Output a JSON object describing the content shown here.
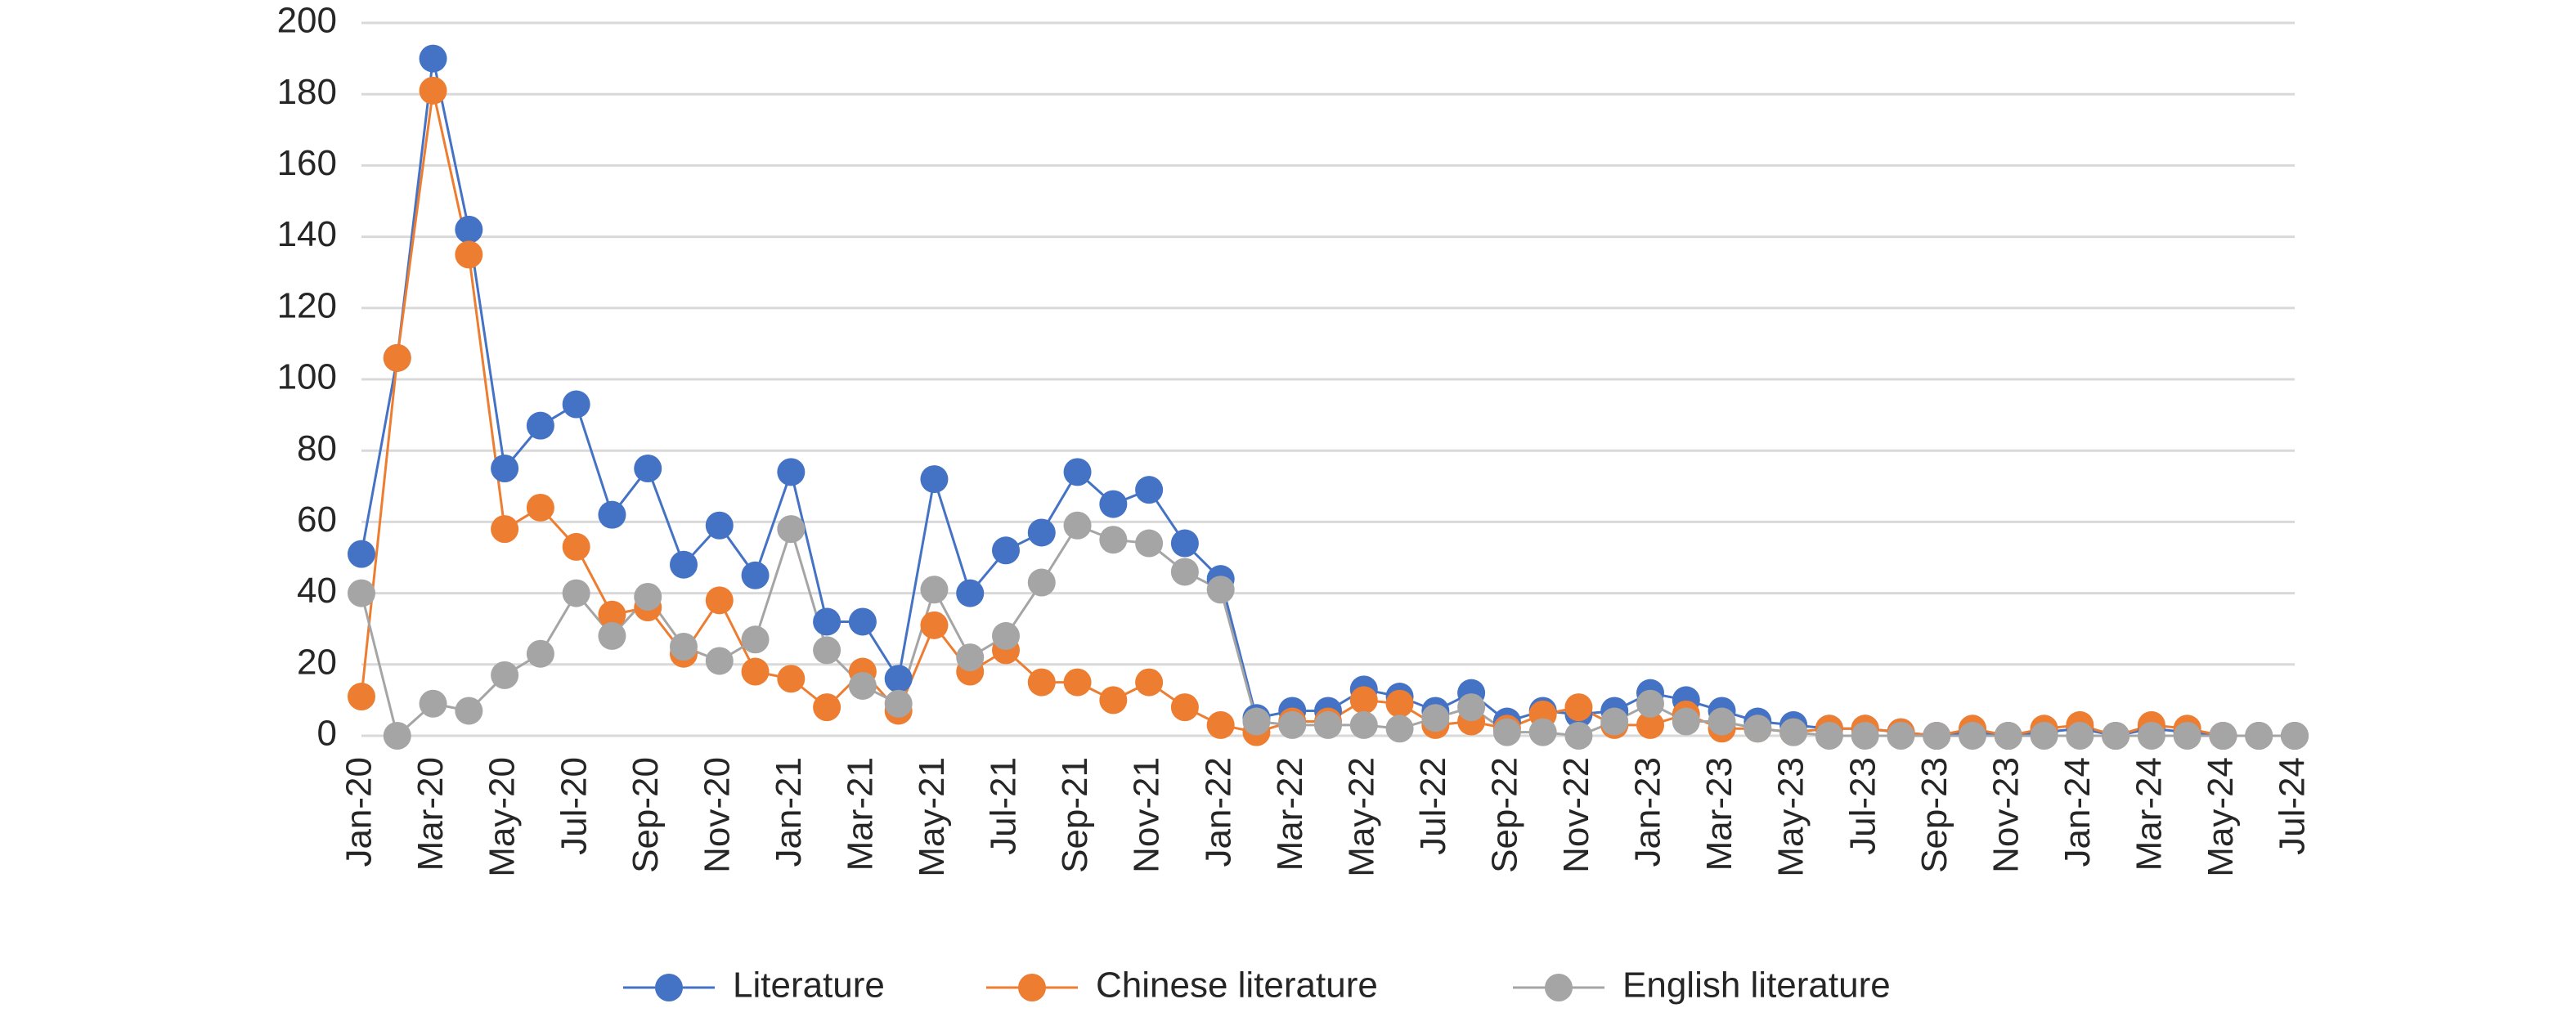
{
  "chart_data": {
    "type": "line",
    "categories": [
      "Jan-20",
      null,
      "Mar-20",
      null,
      "May-20",
      null,
      "Jul-20",
      null,
      "Sep-20",
      null,
      "Nov-20",
      null,
      "Jan-21",
      null,
      "Mar-21",
      null,
      "May-21",
      null,
      "Jul-21",
      null,
      "Sep-21",
      null,
      "Nov-21",
      null,
      "Jan-22",
      null,
      "Mar-22",
      null,
      "May-22",
      null,
      "Jul-22",
      null,
      "Sep-22",
      null,
      "Nov-22",
      null,
      "Jan-23",
      null,
      "Mar-23",
      null,
      "May-23",
      null,
      "Jul-23",
      null,
      "Sep-23",
      null,
      "Nov-23",
      null,
      "Jan-24",
      null,
      "Mar-24",
      null,
      "May-24",
      null,
      "Jul-24"
    ],
    "series": [
      {
        "name": "Literature",
        "color": "#4472c4",
        "values": [
          51,
          106,
          190,
          142,
          75,
          87,
          93,
          62,
          75,
          48,
          59,
          45,
          74,
          32,
          32,
          16,
          72,
          40,
          52,
          57,
          74,
          65,
          69,
          54,
          44,
          5,
          7,
          7,
          13,
          11,
          7,
          12,
          4,
          7,
          6,
          7,
          12,
          10,
          7,
          4,
          3,
          2,
          2,
          1,
          0,
          1,
          0,
          1,
          2,
          0,
          2,
          1,
          0,
          0,
          0
        ]
      },
      {
        "name": "Chinese literature",
        "color": "#ed7d31",
        "values": [
          11,
          106,
          181,
          135,
          58,
          64,
          53,
          34,
          36,
          23,
          38,
          18,
          16,
          8,
          18,
          7,
          31,
          18,
          24,
          15,
          15,
          10,
          15,
          8,
          3,
          1,
          4,
          4,
          10,
          9,
          3,
          4,
          2,
          6,
          8,
          3,
          3,
          6,
          2,
          2,
          1,
          2,
          2,
          1,
          0,
          2,
          0,
          2,
          3,
          0,
          3,
          2,
          0,
          0,
          0
        ]
      },
      {
        "name": "English literature",
        "color": "#a5a5a5",
        "values": [
          40,
          0,
          9,
          7,
          17,
          23,
          40,
          28,
          39,
          25,
          21,
          27,
          58,
          24,
          14,
          9,
          41,
          22,
          28,
          43,
          59,
          55,
          54,
          46,
          41,
          4,
          3,
          3,
          3,
          2,
          5,
          8,
          1,
          1,
          0,
          4,
          9,
          4,
          4,
          2,
          1,
          0,
          0,
          0,
          0,
          0,
          0,
          0,
          0,
          0,
          0,
          0,
          0,
          0,
          0
        ]
      }
    ],
    "ylim": [
      0,
      200
    ],
    "yticks": [
      0,
      20,
      40,
      60,
      80,
      100,
      120,
      140,
      160,
      180,
      200
    ],
    "grid": true,
    "legend": "bottom"
  }
}
